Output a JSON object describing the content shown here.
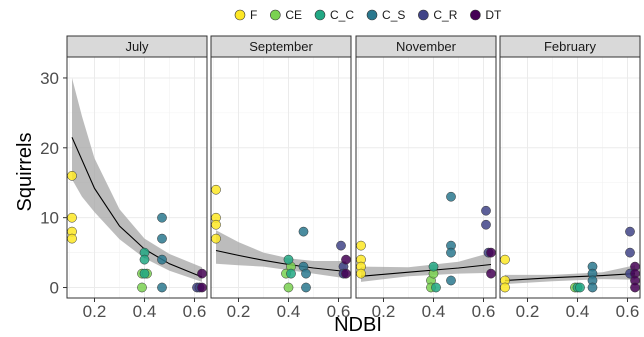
{
  "chart_data": {
    "type": "scatter",
    "xlabel": "NDBI",
    "ylabel": "Squirrels",
    "xlim": [
      0.09,
      0.65
    ],
    "ylim": [
      -1.5,
      33
    ],
    "x_ticks": [
      0.2,
      0.4,
      0.6
    ],
    "x_tick_labels": [
      "0.2",
      "0.4",
      "0.6"
    ],
    "y_ticks": [
      0,
      10,
      20,
      30
    ],
    "y_tick_labels": [
      "0",
      "10",
      "20",
      "30"
    ],
    "grid": true,
    "legend_position": "top",
    "legend": [
      {
        "name": "F",
        "color": "#FDE725"
      },
      {
        "name": "CE",
        "color": "#7AD151"
      },
      {
        "name": "C_C",
        "color": "#22A884"
      },
      {
        "name": "C_S",
        "color": "#2A788E"
      },
      {
        "name": "C_R",
        "color": "#414487"
      },
      {
        "name": "DT",
        "color": "#440154"
      }
    ],
    "colors": {
      "F": "#FDE725",
      "CE": "#7AD151",
      "C_C": "#22A884",
      "C_S": "#2A788E",
      "C_R": "#414487",
      "DT": "#440154",
      "strip_fill": "#d9d9d9",
      "ribbon": "#a6a6a6",
      "fit_line": "#000000"
    },
    "panels": [
      {
        "title": "July",
        "points": [
          {
            "group": "F",
            "x": 0.11,
            "y": 16
          },
          {
            "group": "F",
            "x": 0.11,
            "y": 10
          },
          {
            "group": "F",
            "x": 0.11,
            "y": 8
          },
          {
            "group": "F",
            "x": 0.11,
            "y": 7
          },
          {
            "group": "CE",
            "x": 0.39,
            "y": 2
          },
          {
            "group": "CE",
            "x": 0.39,
            "y": 0
          },
          {
            "group": "CE",
            "x": 0.41,
            "y": 2
          },
          {
            "group": "C_C",
            "x": 0.4,
            "y": 5
          },
          {
            "group": "C_C",
            "x": 0.4,
            "y": 4
          },
          {
            "group": "C_C",
            "x": 0.4,
            "y": 2
          },
          {
            "group": "C_S",
            "x": 0.47,
            "y": 10
          },
          {
            "group": "C_S",
            "x": 0.47,
            "y": 7
          },
          {
            "group": "C_S",
            "x": 0.47,
            "y": 4
          },
          {
            "group": "C_S",
            "x": 0.47,
            "y": 0
          },
          {
            "group": "C_R",
            "x": 0.61,
            "y": 0
          },
          {
            "group": "C_R",
            "x": 0.62,
            "y": 0
          },
          {
            "group": "DT",
            "x": 0.63,
            "y": 2
          },
          {
            "group": "DT",
            "x": 0.63,
            "y": 0
          }
        ],
        "fit": [
          [
            0.11,
            21.5
          ],
          [
            0.2,
            14.2
          ],
          [
            0.3,
            8.8
          ],
          [
            0.4,
            5.5
          ],
          [
            0.5,
            3.4
          ],
          [
            0.63,
            1.5
          ]
        ],
        "ribbon_upper": [
          [
            0.11,
            30
          ],
          [
            0.15,
            24.5
          ],
          [
            0.2,
            18.5
          ],
          [
            0.3,
            11.2
          ],
          [
            0.4,
            7.0
          ],
          [
            0.5,
            4.8
          ],
          [
            0.63,
            2.9
          ]
        ],
        "ribbon_lower": [
          [
            0.11,
            15.5
          ],
          [
            0.15,
            13.0
          ],
          [
            0.2,
            10.8
          ],
          [
            0.3,
            6.9
          ],
          [
            0.4,
            4.2
          ],
          [
            0.5,
            2.4
          ],
          [
            0.63,
            0.8
          ]
        ]
      },
      {
        "title": "September",
        "points": [
          {
            "group": "F",
            "x": 0.11,
            "y": 14
          },
          {
            "group": "F",
            "x": 0.11,
            "y": 10
          },
          {
            "group": "F",
            "x": 0.11,
            "y": 9
          },
          {
            "group": "F",
            "x": 0.11,
            "y": 7
          },
          {
            "group": "CE",
            "x": 0.39,
            "y": 2
          },
          {
            "group": "CE",
            "x": 0.4,
            "y": 0
          },
          {
            "group": "CE",
            "x": 0.41,
            "y": 3
          },
          {
            "group": "C_C",
            "x": 0.4,
            "y": 4
          },
          {
            "group": "C_C",
            "x": 0.41,
            "y": 2
          },
          {
            "group": "C_S",
            "x": 0.46,
            "y": 8
          },
          {
            "group": "C_S",
            "x": 0.46,
            "y": 3
          },
          {
            "group": "C_S",
            "x": 0.47,
            "y": 2
          },
          {
            "group": "C_S",
            "x": 0.47,
            "y": 0
          },
          {
            "group": "C_R",
            "x": 0.61,
            "y": 6
          },
          {
            "group": "C_R",
            "x": 0.62,
            "y": 3
          },
          {
            "group": "C_R",
            "x": 0.62,
            "y": 2
          },
          {
            "group": "DT",
            "x": 0.63,
            "y": 4
          },
          {
            "group": "DT",
            "x": 0.63,
            "y": 2
          }
        ],
        "fit": [
          [
            0.11,
            5.3
          ],
          [
            0.2,
            4.6
          ],
          [
            0.3,
            3.9
          ],
          [
            0.4,
            3.3
          ],
          [
            0.5,
            2.8
          ],
          [
            0.63,
            2.3
          ]
        ],
        "ribbon_upper": [
          [
            0.11,
            8.2
          ],
          [
            0.2,
            6.5
          ],
          [
            0.3,
            5.0
          ],
          [
            0.4,
            4.2
          ],
          [
            0.5,
            3.8
          ],
          [
            0.63,
            3.8
          ]
        ],
        "ribbon_lower": [
          [
            0.11,
            3.4
          ],
          [
            0.2,
            3.2
          ],
          [
            0.3,
            3.0
          ],
          [
            0.4,
            2.5
          ],
          [
            0.5,
            2.0
          ],
          [
            0.63,
            1.3
          ]
        ]
      },
      {
        "title": "November",
        "points": [
          {
            "group": "F",
            "x": 0.11,
            "y": 6
          },
          {
            "group": "F",
            "x": 0.11,
            "y": 4
          },
          {
            "group": "F",
            "x": 0.11,
            "y": 3
          },
          {
            "group": "F",
            "x": 0.11,
            "y": 2
          },
          {
            "group": "CE",
            "x": 0.39,
            "y": 1
          },
          {
            "group": "CE",
            "x": 0.39,
            "y": 0
          },
          {
            "group": "CE",
            "x": 0.4,
            "y": 2
          },
          {
            "group": "C_C",
            "x": 0.4,
            "y": 3
          },
          {
            "group": "C_C",
            "x": 0.41,
            "y": 0
          },
          {
            "group": "C_S",
            "x": 0.47,
            "y": 13
          },
          {
            "group": "C_S",
            "x": 0.47,
            "y": 6
          },
          {
            "group": "C_S",
            "x": 0.47,
            "y": 5
          },
          {
            "group": "C_S",
            "x": 0.47,
            "y": 1
          },
          {
            "group": "C_R",
            "x": 0.61,
            "y": 11
          },
          {
            "group": "C_R",
            "x": 0.61,
            "y": 9
          },
          {
            "group": "C_R",
            "x": 0.62,
            "y": 5
          },
          {
            "group": "DT",
            "x": 0.63,
            "y": 5
          },
          {
            "group": "DT",
            "x": 0.63,
            "y": 2
          }
        ],
        "fit": [
          [
            0.11,
            1.6
          ],
          [
            0.3,
            2.2
          ],
          [
            0.5,
            2.8
          ],
          [
            0.63,
            3.3
          ]
        ],
        "ribbon_upper": [
          [
            0.11,
            3.0
          ],
          [
            0.3,
            2.9
          ],
          [
            0.5,
            3.7
          ],
          [
            0.63,
            5.0
          ]
        ],
        "ribbon_lower": [
          [
            0.11,
            0.8
          ],
          [
            0.3,
            1.6
          ],
          [
            0.5,
            2.0
          ],
          [
            0.63,
            2.1
          ]
        ]
      },
      {
        "title": "February",
        "points": [
          {
            "group": "F",
            "x": 0.11,
            "y": 4
          },
          {
            "group": "F",
            "x": 0.11,
            "y": 1
          },
          {
            "group": "F",
            "x": 0.11,
            "y": 0
          },
          {
            "group": "CE",
            "x": 0.39,
            "y": 0
          },
          {
            "group": "C_C",
            "x": 0.4,
            "y": 0
          },
          {
            "group": "C_C",
            "x": 0.41,
            "y": 0
          },
          {
            "group": "C_S",
            "x": 0.46,
            "y": 3
          },
          {
            "group": "C_S",
            "x": 0.46,
            "y": 2
          },
          {
            "group": "C_S",
            "x": 0.46,
            "y": 1
          },
          {
            "group": "C_S",
            "x": 0.46,
            "y": 0
          },
          {
            "group": "C_R",
            "x": 0.61,
            "y": 8
          },
          {
            "group": "C_R",
            "x": 0.61,
            "y": 5
          },
          {
            "group": "C_R",
            "x": 0.61,
            "y": 2
          },
          {
            "group": "DT",
            "x": 0.63,
            "y": 3
          },
          {
            "group": "DT",
            "x": 0.63,
            "y": 2
          },
          {
            "group": "DT",
            "x": 0.63,
            "y": 1
          },
          {
            "group": "DT",
            "x": 0.63,
            "y": 0
          }
        ],
        "fit": [
          [
            0.11,
            1.0
          ],
          [
            0.3,
            1.4
          ],
          [
            0.5,
            1.7
          ],
          [
            0.63,
            2.0
          ]
        ],
        "ribbon_upper": [
          [
            0.11,
            1.8
          ],
          [
            0.3,
            1.8
          ],
          [
            0.5,
            2.2
          ],
          [
            0.63,
            3.2
          ]
        ],
        "ribbon_lower": [
          [
            0.11,
            0.5
          ],
          [
            0.3,
            0.9
          ],
          [
            0.5,
            1.2
          ],
          [
            0.63,
            1.1
          ]
        ]
      }
    ]
  }
}
